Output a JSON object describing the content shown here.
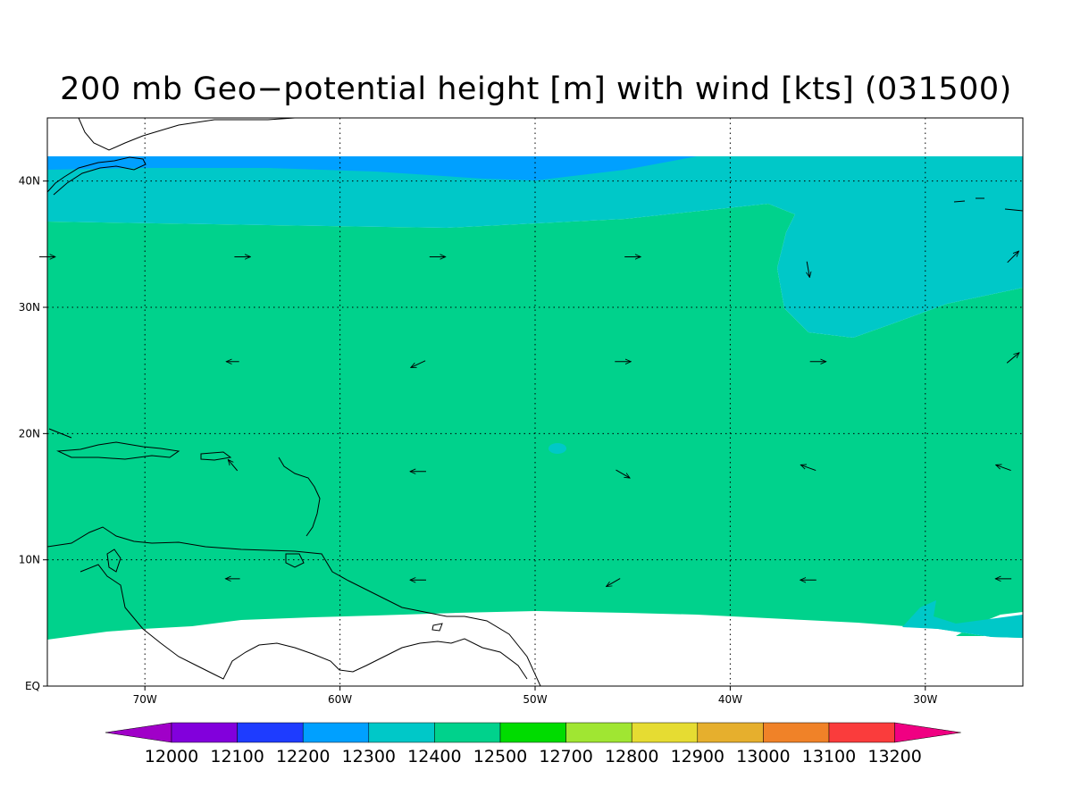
{
  "title": "200 mb Geo−potential height [m] with wind [kts] (031500)",
  "map": {
    "lon_range": [
      -75,
      -25
    ],
    "lat_range": [
      0,
      45
    ],
    "lon_ticks": [
      "70W",
      "60W",
      "50W",
      "40W",
      "30W"
    ],
    "lon_tick_values": [
      -70,
      -60,
      -50,
      -40,
      -30
    ],
    "lat_ticks": [
      "EQ",
      "10N",
      "20N",
      "30N",
      "40N"
    ],
    "lat_tick_values": [
      0,
      10,
      20,
      30,
      40
    ],
    "grid": true
  },
  "legend": {
    "labels": [
      "12000",
      "12100",
      "12200",
      "12300",
      "12400",
      "12500",
      "12700",
      "12800",
      "12900",
      "13000",
      "13100",
      "13200"
    ],
    "colors": [
      "#a000c8",
      "#8200dc",
      "#1e3cff",
      "#00a0ff",
      "#00c8c8",
      "#00d28c",
      "#00dc00",
      "#a0e632",
      "#e6dc32",
      "#e6af2d",
      "#f08228",
      "#fa3c3c",
      "#f00082"
    ]
  },
  "fills": {
    "band_12200": "#00a0ff",
    "band_12300": "#00c8c8",
    "band_12400": "#00d28c"
  },
  "wind_vectors": [
    {
      "lon": -75,
      "lat": 34,
      "dir": 90,
      "len": 1
    },
    {
      "lon": -65,
      "lat": 34,
      "dir": 90,
      "len": 1
    },
    {
      "lon": -55,
      "lat": 34,
      "dir": 90,
      "len": 1
    },
    {
      "lon": -45,
      "lat": 34,
      "dir": 90,
      "len": 1
    },
    {
      "lon": -36,
      "lat": 33,
      "dir": 170,
      "len": 1
    },
    {
      "lon": -25.5,
      "lat": 34,
      "dir": 45,
      "len": 1
    },
    {
      "lon": -65.5,
      "lat": 25.7,
      "dir": 270,
      "len": 0.8
    },
    {
      "lon": -56,
      "lat": 25.5,
      "dir": 245,
      "len": 1
    },
    {
      "lon": -45.5,
      "lat": 25.7,
      "dir": 90,
      "len": 1
    },
    {
      "lon": -35.5,
      "lat": 25.7,
      "dir": 90,
      "len": 1
    },
    {
      "lon": -25.5,
      "lat": 26,
      "dir": 50,
      "len": 1
    },
    {
      "lon": -65.5,
      "lat": 17.5,
      "dir": 320,
      "len": 0.9
    },
    {
      "lon": -56,
      "lat": 17,
      "dir": 270,
      "len": 1
    },
    {
      "lon": -45.5,
      "lat": 16.8,
      "dir": 120,
      "len": 1
    },
    {
      "lon": -36,
      "lat": 17.3,
      "dir": 290,
      "len": 1
    },
    {
      "lon": -26,
      "lat": 17.3,
      "dir": 290,
      "len": 1
    },
    {
      "lon": -65.5,
      "lat": 8.5,
      "dir": 270,
      "len": 0.9
    },
    {
      "lon": -56,
      "lat": 8.4,
      "dir": 270,
      "len": 1
    },
    {
      "lon": -46,
      "lat": 8.2,
      "dir": 240,
      "len": 1
    },
    {
      "lon": -36,
      "lat": 8.4,
      "dir": 270,
      "len": 1
    },
    {
      "lon": -26,
      "lat": 8.5,
      "dir": 270,
      "len": 1
    }
  ]
}
